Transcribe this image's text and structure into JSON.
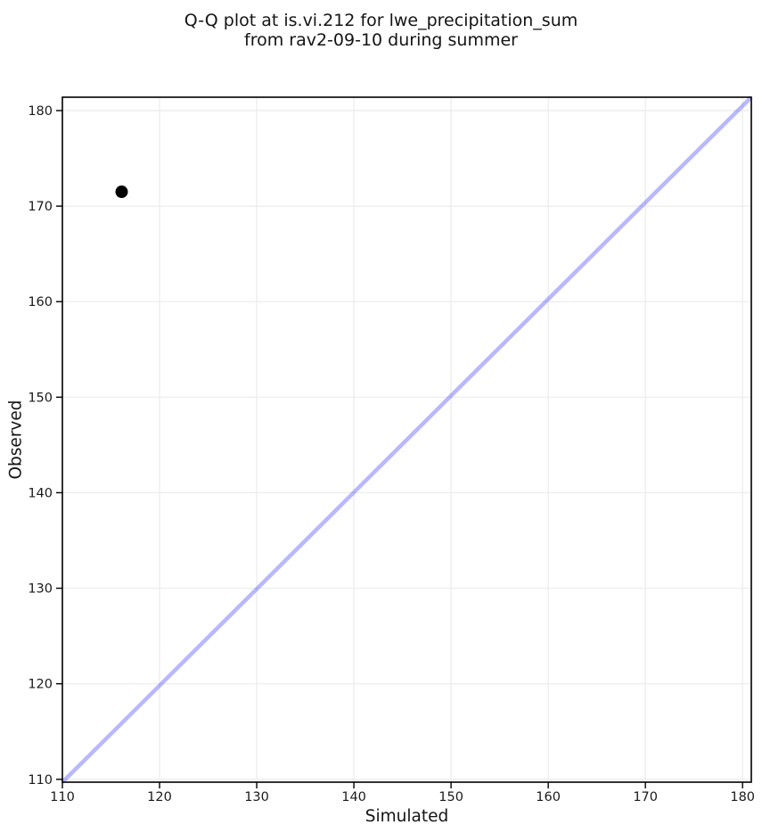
{
  "chart_data": {
    "type": "scatter",
    "title": "Q-Q plot at is.vi.212 for lwe_precipitation_sum\nfrom rav2-09-10 during summer",
    "title_line1": "Q-Q plot at is.vi.212 for lwe_precipitation_sum",
    "title_line2": "from rav2-09-10 during summer",
    "xlabel": "Simulated",
    "ylabel": "Observed",
    "xlim": [
      110,
      180.9
    ],
    "ylim": [
      109.7,
      181.4
    ],
    "xticks": [
      110,
      120,
      130,
      140,
      150,
      160,
      170,
      180
    ],
    "yticks": [
      110,
      120,
      130,
      140,
      150,
      160,
      170,
      180
    ],
    "grid": true,
    "legend": "none",
    "points": [
      {
        "x": 116.1,
        "y": 171.5
      }
    ],
    "point_style": {
      "color": "#000000",
      "radius": 7
    },
    "reference_line": {
      "name": "identity",
      "equation": "y = x",
      "spans": "full-diagonal",
      "color": "#2222ff",
      "opacity": 0.32,
      "width": 4.5
    },
    "colors": {
      "background": "#ffffff",
      "grid": "#ebebeb",
      "spine": "#000000",
      "text": "#1a1a1a"
    }
  }
}
